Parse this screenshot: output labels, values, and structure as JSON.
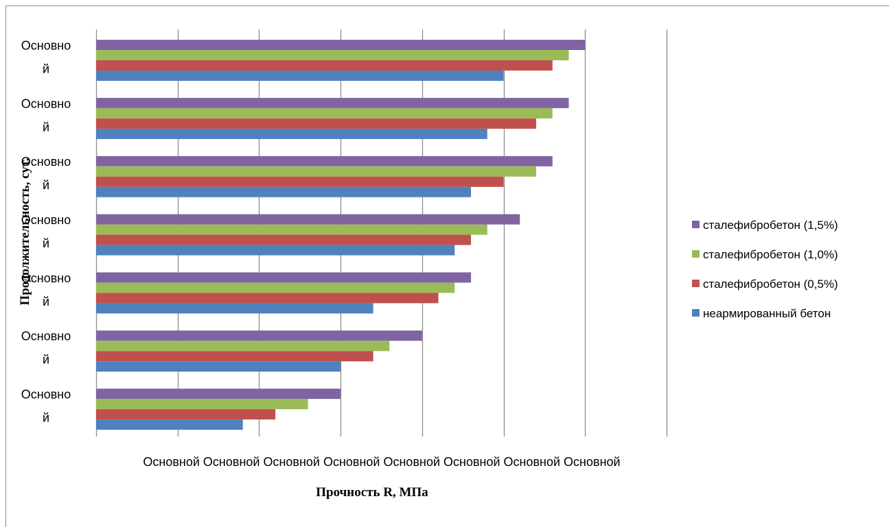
{
  "chart_data": {
    "type": "bar",
    "orientation": "horizontal",
    "categories": [
      "Основной",
      "Основной",
      "Основной",
      "Основной",
      "Основной",
      "Основной",
      "Основной"
    ],
    "x_tick_labels": [
      "Основной",
      "Основной",
      "Основной",
      "Основной",
      "Основной",
      "Основной",
      "Основной",
      "Основной"
    ],
    "xlim": [
      0,
      7
    ],
    "grid": true,
    "legend_position": "right",
    "xlabel": "Прочность R, МПа",
    "ylabel": "Продолжительность, сут.",
    "series": [
      {
        "name": "неармированный бетон",
        "color": "#4f81bd",
        "values": [
          1.8,
          3.0,
          3.4,
          4.4,
          4.6,
          4.8,
          5.0
        ]
      },
      {
        "name": "сталефибробетон (0,5%)",
        "color": "#c0504d",
        "values": [
          2.2,
          3.4,
          4.2,
          4.6,
          5.0,
          5.4,
          5.6
        ]
      },
      {
        "name": "сталефибробетон (1,0%)",
        "color": "#9bbb59",
        "values": [
          2.6,
          3.6,
          4.4,
          4.8,
          5.4,
          5.6,
          5.8
        ]
      },
      {
        "name": "сталефибробетон (1,5%)",
        "color": "#8064a2",
        "values": [
          3.0,
          4.0,
          4.6,
          5.2,
          5.6,
          5.8,
          6.0
        ]
      }
    ]
  }
}
